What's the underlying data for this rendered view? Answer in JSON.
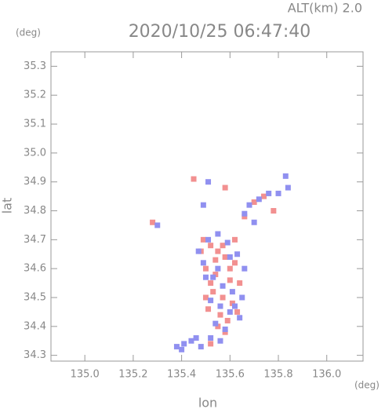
{
  "chart_data": {
    "type": "scatter",
    "header": "ALT(km) 2.0",
    "title": "2020/10/25 06:47:40",
    "y_unit": "(deg)",
    "x_unit": "(deg)",
    "xlabel": "lon",
    "ylabel": "lat",
    "xlim": [
      134.86,
      136.15
    ],
    "ylim": [
      34.28,
      35.35
    ],
    "xticks": [
      {
        "value": 135,
        "label": "135.0"
      },
      135.2,
      135.4,
      135.6,
      135.8,
      {
        "value": 136,
        "label": "136.0"
      }
    ],
    "yticks": [
      34.3,
      34.4,
      34.5,
      34.6,
      34.7,
      34.8,
      34.9,
      {
        "value": 35,
        "label": "35.0"
      },
      35.1,
      35.2,
      35.3
    ],
    "series": [
      {
        "color": "#f29090",
        "x": [
          135.49,
          135.52,
          135.55,
          135.58,
          135.62,
          135.5,
          135.54,
          135.6,
          135.64,
          135.53,
          135.57,
          135.61,
          135.51,
          135.56,
          135.59,
          135.63,
          135.55,
          135.58,
          135.52,
          135.6,
          135.57,
          135.54,
          135.48,
          135.5,
          135.62,
          135.66,
          135.7,
          135.74,
          135.78,
          135.28,
          135.52,
          135.45,
          135.58
        ],
        "values": [
          34.7,
          34.68,
          34.66,
          34.64,
          34.62,
          34.6,
          34.58,
          34.56,
          34.55,
          34.52,
          34.5,
          34.48,
          34.46,
          34.44,
          34.42,
          34.45,
          34.4,
          34.38,
          34.55,
          34.6,
          34.68,
          34.63,
          34.66,
          34.5,
          34.7,
          34.78,
          34.83,
          34.85,
          34.8,
          34.76,
          34.34,
          34.91,
          34.88
        ]
      },
      {
        "color": "#9090f0",
        "x": [
          135.47,
          135.51,
          135.55,
          135.59,
          135.63,
          135.66,
          135.49,
          135.53,
          135.57,
          135.61,
          135.65,
          135.52,
          135.56,
          135.6,
          135.64,
          135.54,
          135.58,
          135.62,
          135.5,
          135.55,
          135.6,
          135.38,
          135.41,
          135.44,
          135.48,
          135.52,
          135.56,
          135.4,
          135.46,
          135.68,
          135.72,
          135.76,
          135.8,
          135.84,
          135.83,
          135.66,
          135.7,
          135.51,
          135.49,
          135.3
        ],
        "values": [
          34.66,
          34.7,
          34.72,
          34.69,
          34.65,
          34.6,
          34.62,
          34.57,
          34.54,
          34.52,
          34.5,
          34.49,
          34.47,
          34.45,
          34.43,
          34.41,
          34.39,
          34.47,
          34.57,
          34.6,
          34.64,
          34.33,
          34.34,
          34.35,
          34.33,
          34.36,
          34.35,
          34.32,
          34.36,
          34.82,
          34.84,
          34.86,
          34.86,
          34.88,
          34.92,
          34.79,
          34.76,
          34.9,
          34.82,
          34.75
        ]
      }
    ]
  }
}
